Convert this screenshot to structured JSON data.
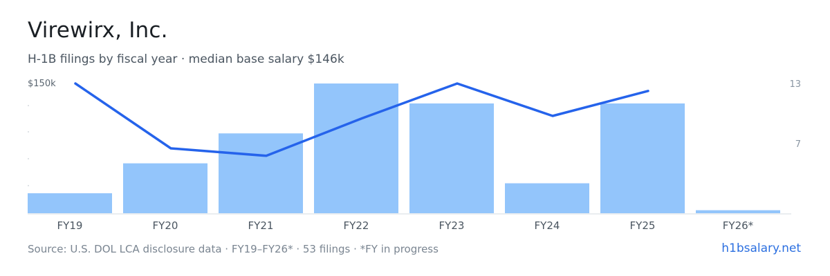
{
  "title": "Virewirx, Inc.",
  "subtitle": "H-1B filings by fiscal year · median base salary $146k",
  "footer": "Source: U.S. DOL LCA disclosure data · FY19–FY26* · 53 filings · *FY in progress",
  "site": "h1bsalary.net",
  "colors": {
    "bar": "#93c5fb",
    "line": "#2563eb",
    "axis_text": "#8a96a3",
    "axis_line": "#d5dbe1"
  },
  "chart_data": {
    "type": "bar",
    "categories": [
      "FY19",
      "FY20",
      "FY21",
      "FY22",
      "FY23",
      "FY24",
      "FY25",
      "FY26*"
    ],
    "series": [
      {
        "values": [
          2,
          5,
          8,
          13,
          11,
          3,
          11,
          0.3
        ]
      },
      {
        "values": [
          150,
          124,
          121,
          136,
          150,
          137,
          147,
          null
        ]
      }
    ],
    "y_right": {
      "ticks": [
        13,
        7
      ],
      "ylim": [
        0,
        13
      ]
    },
    "y_left": {
      "ticks": [
        "$150k"
      ],
      "ylim": [
        98,
        150
      ]
    },
    "grid": false,
    "legend": "none"
  }
}
